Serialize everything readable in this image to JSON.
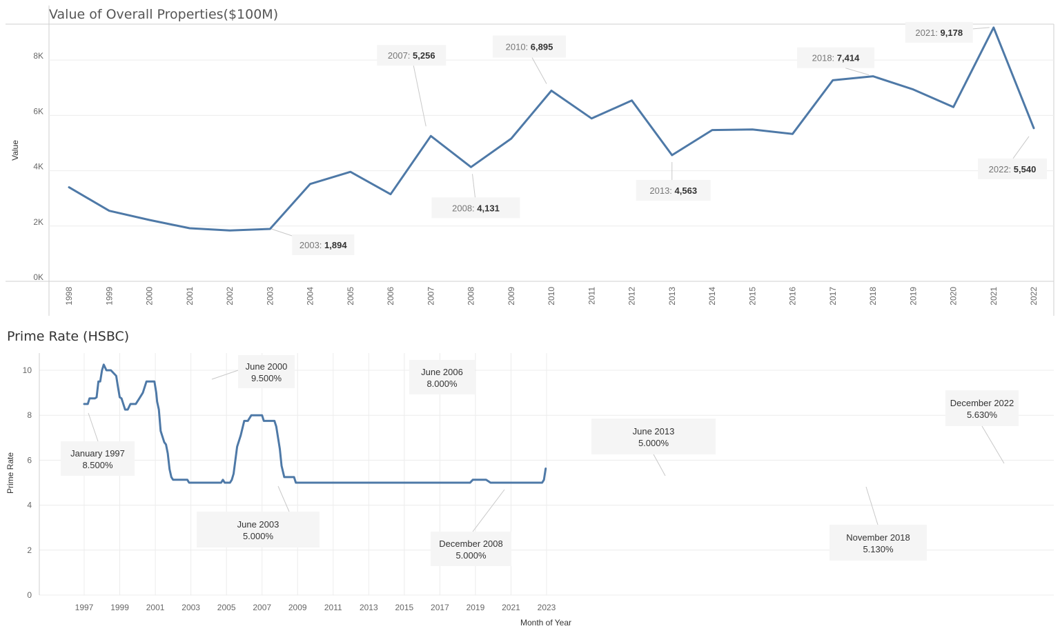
{
  "chart_data": [
    {
      "type": "line",
      "title": "Value of Overall Properties($100M)",
      "xlabel": "",
      "ylabel": "Value",
      "ylim": [
        0,
        9300
      ],
      "y_ticks": [
        "0K",
        "2K",
        "4K",
        "6K",
        "8K"
      ],
      "categories": [
        "1998",
        "1999",
        "2000",
        "2001",
        "2002",
        "2003",
        "2004",
        "2005",
        "2006",
        "2007",
        "2008",
        "2009",
        "2010",
        "2011",
        "2012",
        "2013",
        "2014",
        "2015",
        "2016",
        "2017",
        "2018",
        "2019",
        "2020",
        "2021",
        "2022"
      ],
      "series": [
        {
          "values": [
            3400,
            2550,
            2220,
            1920,
            1840,
            1894,
            3520,
            3960,
            3150,
            5256,
            4131,
            5160,
            6895,
            5890,
            6540,
            4563,
            5470,
            5490,
            5330,
            7270,
            7414,
            6940,
            6300,
            9178,
            5540
          ]
        }
      ],
      "annotations": [
        {
          "category": "2003",
          "label": "2003:",
          "value": "1,894"
        },
        {
          "category": "2007",
          "label": "2007:",
          "value": "5,256"
        },
        {
          "category": "2008",
          "label": "2008:",
          "value": "4,131"
        },
        {
          "category": "2010",
          "label": "2010:",
          "value": "6,895"
        },
        {
          "category": "2013",
          "label": "2013:",
          "value": "4,563"
        },
        {
          "category": "2018",
          "label": "2018:",
          "value": "7,414"
        },
        {
          "category": "2021",
          "label": "2021:",
          "value": "9,178"
        },
        {
          "category": "2022",
          "label": "2022:",
          "value": "5,540"
        }
      ],
      "grid": true
    },
    {
      "type": "line",
      "title": "Prime Rate (HSBC)",
      "xlabel": "Month of Year",
      "ylabel": "Prime Rate",
      "ylim": [
        0,
        10.5
      ],
      "y_ticks": [
        "0",
        "2",
        "4",
        "6",
        "8",
        "10"
      ],
      "x_ticks": [
        "1997",
        "1999",
        "2001",
        "2003",
        "2005",
        "2007",
        "2009",
        "2011",
        "2013",
        "2015",
        "2017",
        "2019",
        "2021",
        "2023"
      ],
      "x_range": [
        1996.7,
        2023.7
      ],
      "series": [
        {
          "x": [
            1997.0,
            1997.2,
            1997.3,
            1997.6,
            1997.7,
            1997.8,
            1997.9,
            1998.0,
            1998.1,
            1998.25,
            1998.3,
            1998.5,
            1998.8,
            1998.9,
            1999.0,
            1999.1,
            1999.2,
            1999.3,
            1999.45,
            1999.6,
            1999.7,
            1999.9,
            2000.1,
            2000.3,
            2000.5,
            2000.8,
            2000.95,
            2001.0,
            2001.05,
            2001.1,
            2001.2,
            2001.3,
            2001.5,
            2001.6,
            2001.7,
            2001.8,
            2001.9,
            2002.0,
            2002.5,
            2002.8,
            2002.9,
            2003.5,
            2004.0,
            2004.5,
            2004.7,
            2004.8,
            2004.9,
            2005.0,
            2005.2,
            2005.3,
            2005.4,
            2005.6,
            2005.8,
            2006.0,
            2006.2,
            2006.4,
            2006.6,
            2007.0,
            2007.1,
            2007.2,
            2007.7,
            2007.8,
            2007.9,
            2008.0,
            2008.1,
            2008.25,
            2008.3,
            2008.5,
            2008.8,
            2008.9,
            2009.0,
            2010.0,
            2012.0,
            2013.5,
            2015.0,
            2017.0,
            2018.7,
            2018.85,
            2019.1,
            2019.6,
            2019.85,
            2020.0,
            2021.0,
            2022.0,
            2022.75,
            2022.85,
            2022.95
          ],
          "values": [
            8.5,
            8.5,
            8.75,
            8.75,
            8.8,
            9.5,
            9.5,
            10.0,
            10.25,
            10.0,
            10.0,
            10.0,
            9.75,
            9.25,
            8.8,
            8.75,
            8.5,
            8.25,
            8.25,
            8.5,
            8.5,
            8.5,
            8.75,
            9.0,
            9.5,
            9.5,
            9.5,
            9.25,
            9.0,
            8.6,
            8.25,
            7.3,
            6.8,
            6.7,
            6.3,
            5.6,
            5.25,
            5.13,
            5.13,
            5.13,
            5.0,
            5.0,
            5.0,
            5.0,
            5.0,
            5.13,
            5.0,
            5.0,
            5.0,
            5.13,
            5.4,
            6.6,
            7.1,
            7.75,
            7.75,
            8.0,
            8.0,
            8.0,
            7.75,
            7.75,
            7.75,
            7.5,
            7.0,
            6.5,
            5.75,
            5.25,
            5.25,
            5.25,
            5.25,
            5.0,
            5.0,
            5.0,
            5.0,
            5.0,
            5.0,
            5.0,
            5.0,
            5.13,
            5.13,
            5.13,
            5.0,
            5.0,
            5.0,
            5.0,
            5.0,
            5.13,
            5.63
          ]
        }
      ],
      "annotations": [
        {
          "x": 1997.0,
          "y": 8.5,
          "line1": "January 1997",
          "line2": "8.500%"
        },
        {
          "x": 2000.4,
          "y": 9.5,
          "line1": "June 2000",
          "line2": "9.500%"
        },
        {
          "x": 2003.4,
          "y": 5.0,
          "line1": "June 2003",
          "line2": "5.000%"
        },
        {
          "x": 2006.4,
          "y": 8.0,
          "line1": "June 2006",
          "line2": "8.000%"
        },
        {
          "x": 2008.9,
          "y": 5.0,
          "line1": "December 2008",
          "line2": "5.000%"
        },
        {
          "x": 2013.4,
          "y": 5.0,
          "line1": "June 2013",
          "line2": "5.000%"
        },
        {
          "x": 2018.8,
          "y": 5.13,
          "line1": "November 2018",
          "line2": "5.130%"
        },
        {
          "x": 2022.95,
          "y": 5.63,
          "line1": "December 2022",
          "line2": "5.630%"
        }
      ],
      "grid": true
    }
  ]
}
